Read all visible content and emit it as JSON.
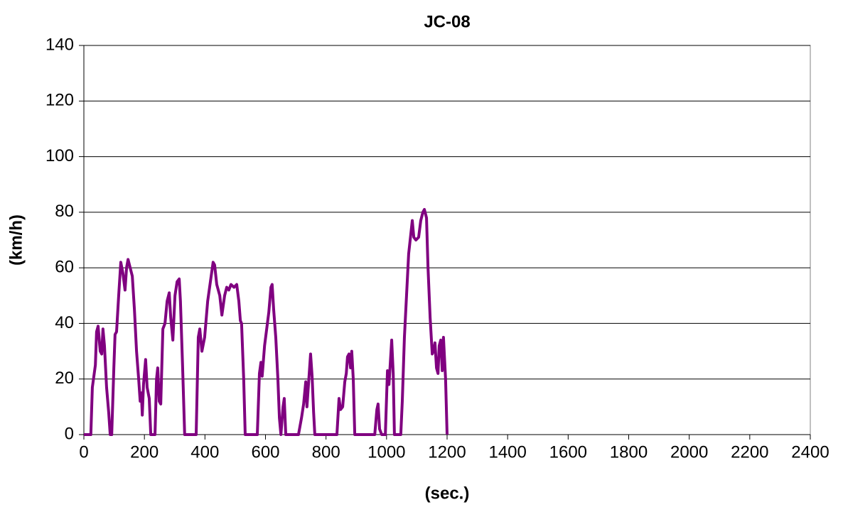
{
  "chart_data": {
    "type": "line",
    "title": "JC-08",
    "x_label": "(sec.)",
    "y_label": "(km/h)",
    "x": [
      0,
      23,
      28,
      38,
      42,
      47,
      54,
      59,
      63,
      68,
      75,
      82,
      87,
      92,
      99,
      103,
      108,
      115,
      122,
      129,
      136,
      141,
      146,
      153,
      160,
      167,
      174,
      181,
      186,
      190,
      193,
      197,
      204,
      209,
      216,
      221,
      235,
      240,
      244,
      249,
      254,
      261,
      268,
      275,
      282,
      287,
      294,
      301,
      308,
      315,
      319,
      326,
      333,
      371,
      378,
      383,
      390,
      399,
      409,
      418,
      427,
      432,
      439,
      449,
      456,
      465,
      472,
      479,
      486,
      496,
      505,
      512,
      517,
      521,
      528,
      533,
      573,
      580,
      585,
      589,
      597,
      604,
      611,
      618,
      622,
      627,
      634,
      641,
      646,
      651,
      658,
      662,
      667,
      709,
      719,
      726,
      733,
      737,
      742,
      749,
      754,
      759,
      763,
      836,
      843,
      848,
      855,
      862,
      867,
      871,
      876,
      881,
      885,
      890,
      895,
      961,
      968,
      972,
      977,
      984,
      996,
      1003,
      1008,
      1012,
      1017,
      1022,
      1026,
      1047,
      1052,
      1059,
      1066,
      1073,
      1080,
      1085,
      1090,
      1097,
      1106,
      1113,
      1120,
      1125,
      1132,
      1137,
      1144,
      1151,
      1155,
      1160,
      1165,
      1170,
      1174,
      1179,
      1184,
      1188,
      1195,
      1200
    ],
    "series": [
      {
        "name": "JC-08",
        "color": "#800080",
        "values": [
          0,
          0,
          17,
          25,
          37,
          39,
          30,
          29,
          38,
          32,
          17,
          8,
          0,
          0,
          24,
          36,
          37,
          50,
          62,
          58,
          52,
          60,
          63,
          60,
          57,
          45,
          30,
          20,
          12,
          15,
          7,
          18,
          27,
          17,
          13,
          0,
          0,
          20,
          24,
          12,
          11,
          38,
          40,
          48,
          51,
          42,
          34,
          50,
          55,
          56,
          48,
          25,
          0,
          0,
          35,
          38,
          30,
          35,
          48,
          55,
          62,
          61,
          54,
          50,
          43,
          50,
          53,
          52,
          54,
          53,
          54,
          48,
          41,
          40,
          20,
          0,
          0,
          22,
          26,
          21,
          32,
          38,
          44,
          53,
          54,
          45,
          35,
          20,
          6,
          0,
          10,
          13,
          0,
          0,
          6,
          11,
          19,
          10,
          18,
          29,
          21,
          8,
          0,
          0,
          13,
          9,
          10,
          19,
          22,
          28,
          29,
          24,
          30,
          20,
          0,
          0,
          9,
          11,
          2,
          0,
          0,
          23,
          18,
          25,
          34,
          22,
          0,
          0,
          12,
          35,
          50,
          65,
          72,
          77,
          71,
          70,
          71,
          77,
          80,
          81,
          78,
          60,
          42,
          29,
          30,
          33,
          24,
          22,
          32,
          34,
          23,
          35,
          20,
          0
        ]
      }
    ],
    "xlim": [
      0,
      2400
    ],
    "xticks": [
      0,
      200,
      400,
      600,
      800,
      1000,
      1200,
      1400,
      1600,
      1800,
      2000,
      2200,
      2400
    ],
    "ylim": [
      0,
      140
    ],
    "yticks": [
      0,
      20,
      40,
      60,
      80,
      100,
      120,
      140
    ],
    "grid": true
  }
}
